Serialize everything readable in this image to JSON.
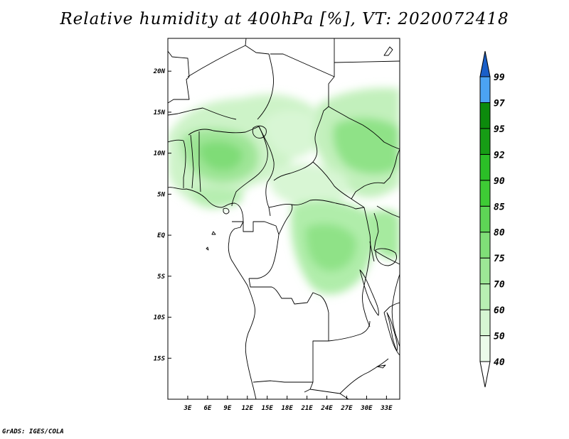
{
  "title": "Relative humidity at 400hPa [%], VT: 2020072418",
  "credit": "GrADS: IGES/COLA",
  "map": {
    "lon_range": [
      0,
      35
    ],
    "lat_range": [
      -20,
      24
    ],
    "lon_ticks": [
      {
        "lon": 3,
        "label": "3E"
      },
      {
        "lon": 6,
        "label": "6E"
      },
      {
        "lon": 9,
        "label": "9E"
      },
      {
        "lon": 12,
        "label": "12E"
      },
      {
        "lon": 15,
        "label": "15E"
      },
      {
        "lon": 18,
        "label": "18E"
      },
      {
        "lon": 21,
        "label": "21E"
      },
      {
        "lon": 24,
        "label": "24E"
      },
      {
        "lon": 27,
        "label": "27E"
      },
      {
        "lon": 30,
        "label": "30E"
      },
      {
        "lon": 33,
        "label": "33E"
      }
    ],
    "lat_ticks": [
      {
        "lat": 20,
        "label": "20N"
      },
      {
        "lat": 15,
        "label": "15N"
      },
      {
        "lat": 10,
        "label": "10N"
      },
      {
        "lat": 5,
        "label": "5N"
      },
      {
        "lat": 0,
        "label": "EQ"
      },
      {
        "lat": -5,
        "label": "5S"
      },
      {
        "lat": -10,
        "label": "10S"
      },
      {
        "lat": -15,
        "label": "15S"
      }
    ]
  },
  "colorbar": {
    "levels": [
      "40",
      "50",
      "60",
      "70",
      "75",
      "80",
      "85",
      "90",
      "92",
      "95",
      "97",
      "99"
    ],
    "colors": [
      "#ffffff",
      "#ebfbea",
      "#d6f6d3",
      "#b8efb3",
      "#9de796",
      "#80df78",
      "#5ed556",
      "#3ecb35",
      "#2bbf27",
      "#169d15",
      "#0c8a0c",
      "#4ba3f2",
      "#2a7fe0",
      "#1a5fc8"
    ]
  }
}
